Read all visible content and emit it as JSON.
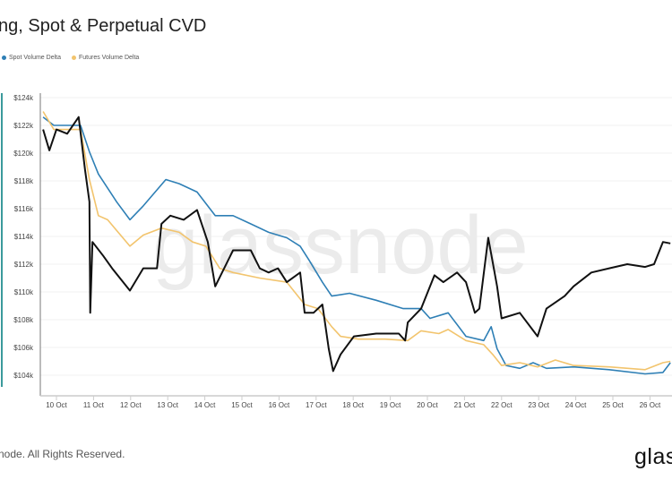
{
  "chart_data": {
    "type": "line",
    "title": "ng, Spot & Perpetual CVD",
    "xlabel": "",
    "ylabel": "",
    "x_unit": "days since 10 Oct",
    "xlim": [
      -0.4,
      16.6
    ],
    "ylim": [
      103.5,
      124.3
    ],
    "grid": true,
    "legend_position": "top-left",
    "y_ticks": [
      "$104k",
      "$106k",
      "$108k",
      "$110k",
      "$112k",
      "$114k",
      "$116k",
      "$118k",
      "$120k",
      "$122k",
      "$124k"
    ],
    "y_tick_values": [
      104,
      106,
      108,
      110,
      112,
      114,
      116,
      118,
      120,
      122,
      124
    ],
    "x_ticks": [
      "10 Oct",
      "11 Oct",
      "12 Oct",
      "13 Oct",
      "14 Oct",
      "15 Oct",
      "16 Oct",
      "17 Oct",
      "18 Oct",
      "19 Oct",
      "20 Oct",
      "21 Oct",
      "22 Oct",
      "23 Oct",
      "24 Oct",
      "25 Oct",
      "26 Oct"
    ],
    "series": [
      {
        "key": "price",
        "color": "#111111",
        "points": [
          [
            -0.36,
            121.7
          ],
          [
            -0.19,
            120.2
          ],
          [
            0,
            121.7
          ],
          [
            0.29,
            121.4
          ],
          [
            0.6,
            122.6
          ],
          [
            0.77,
            118.8
          ],
          [
            0.89,
            116.5
          ],
          [
            0.91,
            108.5
          ],
          [
            0.97,
            113.6
          ],
          [
            1.26,
            112.6
          ],
          [
            1.5,
            111.7
          ],
          [
            1.98,
            110.1
          ],
          [
            2.34,
            111.7
          ],
          [
            2.71,
            111.7
          ],
          [
            2.83,
            114.9
          ],
          [
            3.07,
            115.5
          ],
          [
            3.43,
            115.2
          ],
          [
            3.79,
            115.9
          ],
          [
            4.08,
            113.6
          ],
          [
            4.28,
            110.4
          ],
          [
            4.76,
            113
          ],
          [
            5.24,
            113
          ],
          [
            5.48,
            111.7
          ],
          [
            5.72,
            111.4
          ],
          [
            5.97,
            111.7
          ],
          [
            6.21,
            110.7
          ],
          [
            6.57,
            111.4
          ],
          [
            6.69,
            108.5
          ],
          [
            6.93,
            108.5
          ],
          [
            7.17,
            109.1
          ],
          [
            7.34,
            105.9
          ],
          [
            7.46,
            104.3
          ],
          [
            7.66,
            105.5
          ],
          [
            8.02,
            106.8
          ],
          [
            8.62,
            107
          ],
          [
            9.23,
            107
          ],
          [
            9.4,
            106.5
          ],
          [
            9.47,
            107.8
          ],
          [
            9.83,
            108.8
          ],
          [
            10.19,
            111.2
          ],
          [
            10.43,
            110.7
          ],
          [
            10.8,
            111.4
          ],
          [
            11.04,
            110.7
          ],
          [
            11.28,
            108.5
          ],
          [
            11.4,
            108.8
          ],
          [
            11.64,
            113.9
          ],
          [
            11.88,
            110.4
          ],
          [
            12.0,
            108.1
          ],
          [
            12.49,
            108.5
          ],
          [
            12.97,
            106.8
          ],
          [
            13.21,
            108.8
          ],
          [
            13.7,
            109.7
          ],
          [
            13.94,
            110.4
          ],
          [
            14.42,
            111.4
          ],
          [
            14.9,
            111.7
          ],
          [
            15.39,
            112
          ],
          [
            15.87,
            111.8
          ],
          [
            16.11,
            112
          ],
          [
            16.35,
            113.6
          ],
          [
            16.55,
            113.5
          ]
        ]
      },
      {
        "key": "spot",
        "name": "Spot Volume Delta",
        "color": "#2e7fb5",
        "points": [
          [
            -0.36,
            122.6
          ],
          [
            -0.07,
            122
          ],
          [
            0.65,
            122
          ],
          [
            0.89,
            120.1
          ],
          [
            1.13,
            118.5
          ],
          [
            1.62,
            116.5
          ],
          [
            1.98,
            115.2
          ],
          [
            2.34,
            116.2
          ],
          [
            2.95,
            118.1
          ],
          [
            3.31,
            117.8
          ],
          [
            3.79,
            117.2
          ],
          [
            4.28,
            115.5
          ],
          [
            4.76,
            115.5
          ],
          [
            5.24,
            114.9
          ],
          [
            5.72,
            114.3
          ],
          [
            6.21,
            113.9
          ],
          [
            6.57,
            113.3
          ],
          [
            6.81,
            112.3
          ],
          [
            7.17,
            110.7
          ],
          [
            7.42,
            109.7
          ],
          [
            7.9,
            109.9
          ],
          [
            8.62,
            109.4
          ],
          [
            9.35,
            108.8
          ],
          [
            9.83,
            108.8
          ],
          [
            10.07,
            108.1
          ],
          [
            10.56,
            108.5
          ],
          [
            11.04,
            106.8
          ],
          [
            11.52,
            106.5
          ],
          [
            11.72,
            107.5
          ],
          [
            11.88,
            105.9
          ],
          [
            12.12,
            104.7
          ],
          [
            12.49,
            104.5
          ],
          [
            12.85,
            104.9
          ],
          [
            13.21,
            104.5
          ],
          [
            13.94,
            104.6
          ],
          [
            14.9,
            104.4
          ],
          [
            15.87,
            104.1
          ],
          [
            16.35,
            104.2
          ],
          [
            16.55,
            104.9
          ]
        ]
      },
      {
        "key": "futures",
        "name": "Futures Volume Delta",
        "color": "#f2c46d",
        "points": [
          [
            -0.36,
            123
          ],
          [
            -0.07,
            121.7
          ],
          [
            0.65,
            121.7
          ],
          [
            0.89,
            118.1
          ],
          [
            1.13,
            115.5
          ],
          [
            1.38,
            115.2
          ],
          [
            1.98,
            113.3
          ],
          [
            2.34,
            114.1
          ],
          [
            2.83,
            114.6
          ],
          [
            3.31,
            114.3
          ],
          [
            3.67,
            113.6
          ],
          [
            4.03,
            113.3
          ],
          [
            4.4,
            111.7
          ],
          [
            4.76,
            111.4
          ],
          [
            5.48,
            111
          ],
          [
            6.21,
            110.7
          ],
          [
            6.69,
            109.1
          ],
          [
            7.05,
            108.8
          ],
          [
            7.42,
            107.5
          ],
          [
            7.66,
            106.8
          ],
          [
            8.14,
            106.6
          ],
          [
            8.86,
            106.6
          ],
          [
            9.47,
            106.5
          ],
          [
            9.83,
            107.2
          ],
          [
            10.31,
            107
          ],
          [
            10.56,
            107.3
          ],
          [
            11.04,
            106.5
          ],
          [
            11.52,
            106.2
          ],
          [
            11.76,
            105.5
          ],
          [
            12.0,
            104.7
          ],
          [
            12.49,
            104.9
          ],
          [
            12.97,
            104.6
          ],
          [
            13.45,
            105.1
          ],
          [
            13.94,
            104.7
          ],
          [
            14.9,
            104.6
          ],
          [
            15.87,
            104.4
          ],
          [
            16.35,
            104.9
          ],
          [
            16.55,
            105
          ]
        ]
      }
    ]
  },
  "legend": {
    "spot": "Spot Volume Delta",
    "futures": "Futures Volume Delta"
  },
  "watermark": "glassnode",
  "footer": "node. All Rights Reserved.",
  "logo": "glas"
}
